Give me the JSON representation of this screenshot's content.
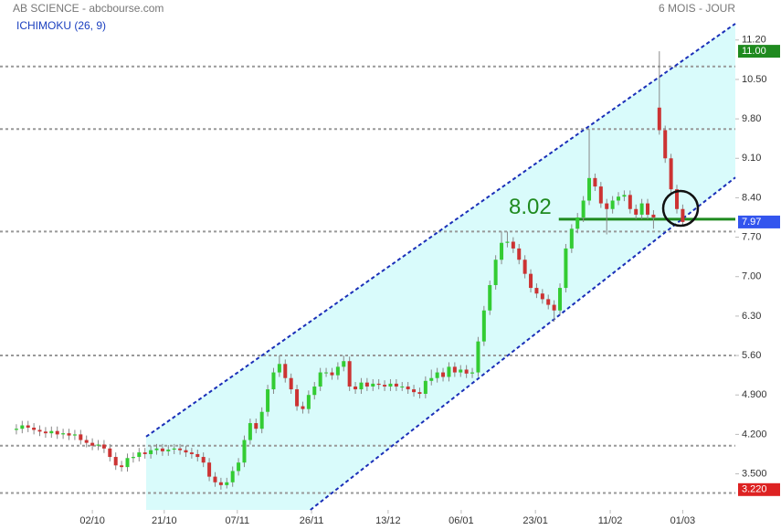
{
  "chart_data": {
    "type": "candlestick",
    "title": "AB SCIENCE - abcbourse.com",
    "period": "6 MOIS - JOUR",
    "indicator": "ICHIMOKU (26, 9)",
    "up_color": "#33cc33",
    "down_color": "#cc3333",
    "open": [
      4.28,
      4.3,
      4.36,
      4.32,
      4.28,
      4.25,
      4.22,
      4.26,
      4.2,
      4.22,
      4.18,
      4.2,
      4.1,
      4.05,
      4.0,
      4.02,
      3.95,
      3.8,
      3.65,
      3.62,
      3.78,
      3.8,
      3.88,
      3.85,
      3.92,
      3.95,
      3.9,
      3.93,
      3.95,
      3.92,
      3.88,
      3.85,
      3.8,
      3.7,
      3.45,
      3.35,
      3.3,
      3.35,
      3.55,
      3.7,
      4.1,
      4.4,
      4.3,
      4.6,
      5.0,
      5.3,
      5.45,
      5.2,
      5.0,
      4.7,
      4.65,
      4.9,
      5.05,
      5.3,
      5.3,
      5.25,
      5.4,
      5.5,
      5.05,
      5.0,
      5.12,
      5.05,
      5.1,
      5.08,
      5.05,
      5.1,
      5.05,
      5.05,
      5.0,
      4.95,
      4.92,
      5.15,
      5.2,
      5.3,
      5.22,
      5.4,
      5.3,
      5.35,
      5.28,
      5.3,
      5.85,
      6.4,
      6.85,
      7.3,
      7.6,
      7.62,
      7.5,
      7.3,
      7.05,
      6.8,
      6.7,
      6.6,
      6.5,
      6.4,
      6.8,
      7.5,
      7.85,
      8.05,
      8.35,
      8.75,
      8.6,
      8.3,
      8.2,
      8.35,
      8.42,
      8.45,
      8.2,
      8.1,
      8.3,
      8.1,
      10.0,
      9.6,
      9.1,
      8.55,
      8.2
    ],
    "high": [
      4.38,
      4.44,
      4.44,
      4.4,
      4.36,
      4.33,
      4.34,
      4.34,
      4.3,
      4.3,
      4.28,
      4.28,
      4.18,
      4.13,
      4.1,
      4.1,
      4.03,
      3.88,
      3.73,
      3.86,
      3.88,
      3.96,
      3.96,
      4.0,
      4.03,
      4.03,
      4.01,
      4.03,
      4.03,
      4.0,
      3.96,
      3.93,
      3.88,
      3.78,
      3.53,
      3.43,
      3.43,
      3.63,
      3.78,
      4.18,
      4.48,
      4.48,
      4.68,
      5.08,
      5.38,
      5.6,
      5.53,
      5.28,
      5.08,
      4.78,
      4.98,
      5.13,
      5.38,
      5.38,
      5.38,
      5.48,
      5.6,
      5.58,
      5.13,
      5.2,
      5.2,
      5.18,
      5.18,
      5.16,
      5.18,
      5.18,
      5.13,
      5.13,
      5.08,
      5.03,
      5.23,
      5.35,
      5.38,
      5.38,
      5.48,
      5.48,
      5.43,
      5.43,
      5.38,
      5.93,
      6.48,
      6.93,
      7.38,
      7.8,
      7.8,
      7.7,
      7.58,
      7.38,
      7.13,
      6.88,
      6.78,
      6.68,
      6.58,
      6.88,
      7.58,
      7.93,
      8.13,
      8.43,
      9.62,
      8.83,
      8.68,
      8.38,
      8.43,
      8.5,
      8.53,
      8.53,
      8.28,
      8.38,
      8.38,
      8.18,
      11.0,
      9.68,
      9.18,
      8.63,
      8.28
    ],
    "low": [
      4.2,
      4.22,
      4.24,
      4.2,
      4.17,
      4.14,
      4.14,
      4.12,
      4.12,
      4.1,
      4.1,
      4.02,
      3.97,
      3.92,
      3.92,
      3.87,
      3.72,
      3.57,
      3.54,
      3.54,
      3.7,
      3.72,
      3.77,
      3.77,
      3.84,
      3.82,
      3.82,
      3.85,
      3.84,
      3.8,
      3.77,
      3.72,
      3.62,
      3.37,
      3.27,
      3.22,
      3.24,
      3.27,
      3.47,
      3.62,
      4.02,
      4.22,
      4.22,
      4.52,
      4.92,
      5.22,
      5.12,
      4.92,
      4.62,
      4.57,
      4.57,
      4.82,
      4.97,
      5.22,
      5.17,
      5.17,
      5.32,
      4.97,
      4.92,
      4.92,
      4.97,
      4.97,
      5.0,
      4.97,
      4.97,
      4.97,
      4.97,
      4.92,
      4.87,
      4.84,
      4.84,
      5.07,
      5.12,
      5.14,
      5.14,
      5.22,
      5.22,
      5.2,
      5.2,
      5.22,
      5.77,
      6.32,
      6.77,
      7.22,
      7.52,
      7.42,
      7.22,
      6.97,
      6.72,
      6.62,
      6.52,
      6.42,
      6.2,
      6.32,
      6.72,
      7.42,
      7.77,
      7.97,
      8.27,
      8.52,
      8.22,
      7.75,
      8.12,
      8.27,
      8.34,
      8.12,
      8.02,
      8.02,
      8.02,
      7.85,
      9.52,
      9.02,
      8.47,
      8.12,
      7.89
    ],
    "close": [
      4.3,
      4.36,
      4.32,
      4.28,
      4.25,
      4.22,
      4.26,
      4.2,
      4.22,
      4.18,
      4.2,
      4.1,
      4.05,
      4.0,
      4.02,
      3.95,
      3.8,
      3.65,
      3.62,
      3.78,
      3.8,
      3.88,
      3.85,
      3.92,
      3.95,
      3.9,
      3.93,
      3.95,
      3.92,
      3.88,
      3.85,
      3.8,
      3.7,
      3.45,
      3.35,
      3.3,
      3.35,
      3.55,
      3.7,
      4.1,
      4.4,
      4.3,
      4.6,
      5.0,
      5.3,
      5.45,
      5.2,
      5.0,
      4.7,
      4.65,
      4.9,
      5.05,
      5.3,
      5.3,
      5.25,
      5.4,
      5.5,
      5.05,
      5.0,
      5.12,
      5.05,
      5.1,
      5.08,
      5.05,
      5.1,
      5.05,
      5.05,
      5.0,
      4.95,
      4.92,
      5.15,
      5.2,
      5.3,
      5.22,
      5.4,
      5.3,
      5.35,
      5.28,
      5.3,
      5.85,
      6.4,
      6.85,
      7.3,
      7.6,
      7.62,
      7.5,
      7.3,
      7.05,
      6.8,
      6.7,
      6.6,
      6.5,
      6.4,
      6.8,
      7.5,
      7.85,
      8.05,
      8.35,
      8.75,
      8.6,
      8.3,
      8.2,
      8.35,
      8.42,
      8.45,
      8.2,
      8.1,
      8.3,
      8.1,
      8.05,
      9.6,
      9.1,
      8.55,
      8.2,
      7.97
    ],
    "xlim": [
      -2.8,
      123
    ],
    "xticks": [
      {
        "value": 13,
        "label": "02/10"
      },
      {
        "value": 25.3,
        "label": "21/10"
      },
      {
        "value": 37.8,
        "label": "07/11"
      },
      {
        "value": 50.5,
        "label": "26/11"
      },
      {
        "value": 63.6,
        "label": "13/12"
      },
      {
        "value": 76.1,
        "label": "06/01"
      },
      {
        "value": 88.8,
        "label": "23/01"
      },
      {
        "value": 101.6,
        "label": "11/02"
      },
      {
        "value": 114,
        "label": "01/03"
      }
    ],
    "ylim": [
      2.86,
      11.91
    ],
    "yticks": [
      {
        "value": 3.5,
        "label": "3.500"
      },
      {
        "value": 4.2,
        "label": "4.200"
      },
      {
        "value": 4.9,
        "label": "4.900"
      },
      {
        "value": 5.6,
        "label": "5.60"
      },
      {
        "value": 6.3,
        "label": "6.30"
      },
      {
        "value": 7.0,
        "label": "7.00"
      },
      {
        "value": 7.7,
        "label": "7.70"
      },
      {
        "value": 8.4,
        "label": "8.40"
      },
      {
        "value": 9.1,
        "label": "9.10"
      },
      {
        "value": 9.8,
        "label": "9.80"
      },
      {
        "value": 10.5,
        "label": "10.50"
      },
      {
        "value": 11.2,
        "label": "11.20"
      }
    ],
    "levels": [
      10.73,
      9.62,
      7.8,
      5.6,
      4.0,
      3.16
    ],
    "channel": {
      "color": "#1a2fb8",
      "fill": "#d9fbfb",
      "upper": {
        "x": [
          22.2,
          123
        ],
        "y": [
          4.16,
          11.49
        ]
      },
      "lower": {
        "x": [
          50.3,
          123
        ],
        "y": [
          2.86,
          8.76
        ]
      }
    },
    "support": {
      "value": 8.02,
      "start": 92.8,
      "color": "#1f8a1f"
    },
    "price_tags": [
      {
        "value": 11.0,
        "label": "11.00",
        "color": "#1f8a1f"
      },
      {
        "value": 7.97,
        "label": "7.97",
        "color": "#3355ee"
      },
      {
        "value": 3.22,
        "label": "3.220",
        "color": "#dd2222"
      }
    ]
  }
}
